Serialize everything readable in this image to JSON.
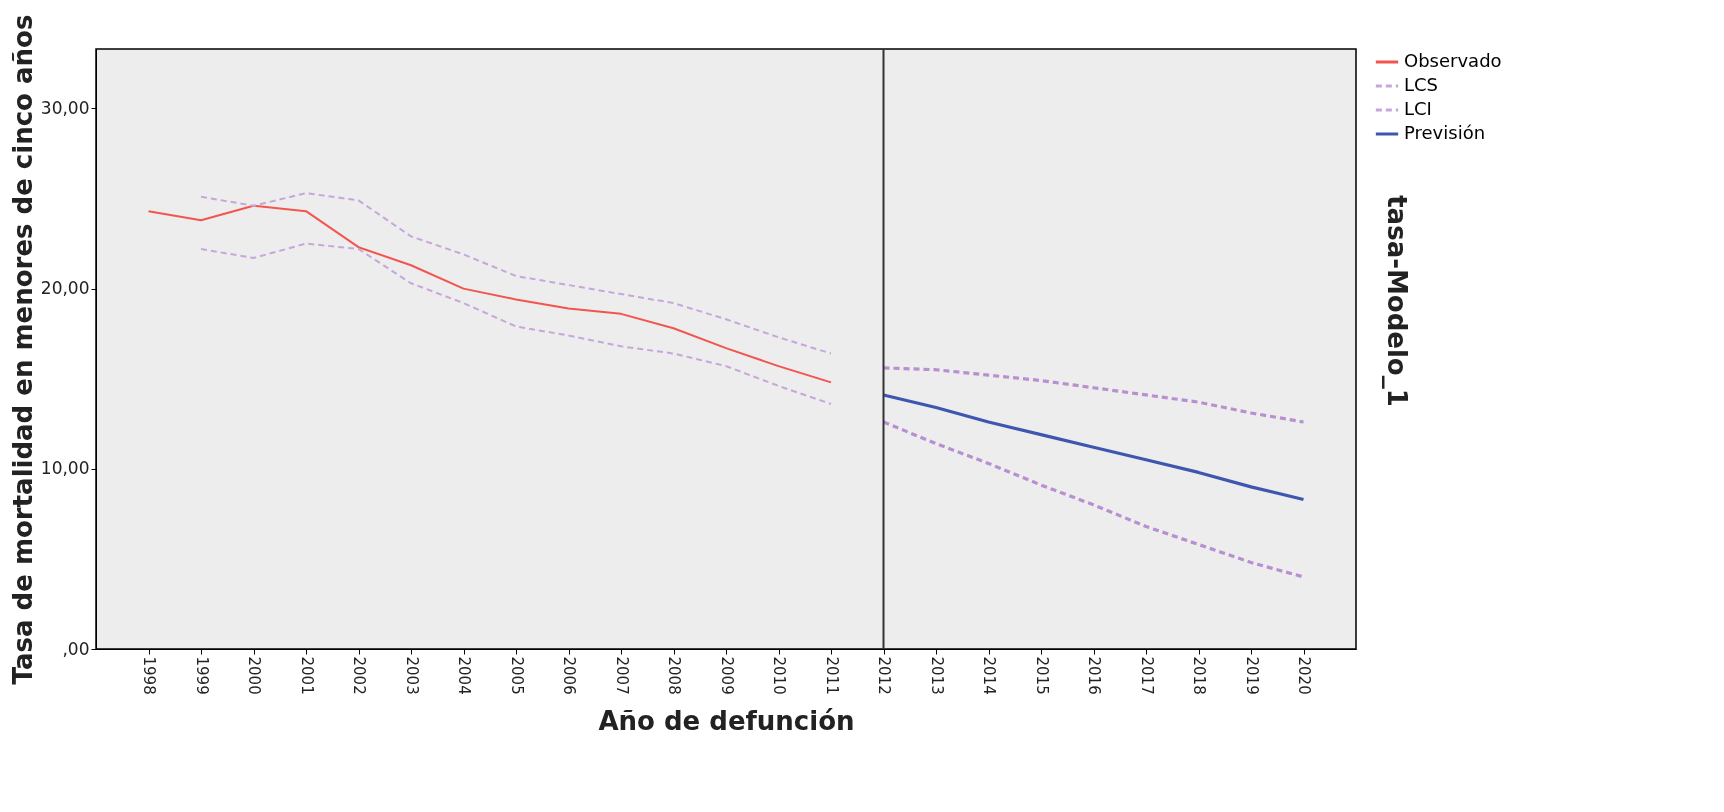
{
  "chart_data": {
    "type": "line",
    "xlabel": "Año de defunción",
    "ylabel": "Tasa de mortalidad en menores de cinco años",
    "categories": [
      "1998",
      "1999",
      "2000",
      "2001",
      "2002",
      "2003",
      "2004",
      "2005",
      "2006",
      "2007",
      "2008",
      "2009",
      "2010",
      "2011",
      "2012",
      "2013",
      "2014",
      "2015",
      "2016",
      "2017",
      "2018",
      "2019",
      "2020"
    ],
    "series": [
      {
        "name": "Observado",
        "color": "#f2554f",
        "line_style": "solid",
        "values": [
          24.3,
          23.8,
          24.6,
          24.3,
          22.3,
          21.3,
          20.0,
          19.4,
          18.9,
          18.6,
          17.8,
          16.7,
          15.7,
          14.8,
          null,
          null,
          null,
          null,
          null,
          null,
          null,
          null,
          null
        ]
      },
      {
        "name": "LCS",
        "color": "#c7a6dc",
        "line_style": "dashed",
        "values": [
          null,
          25.1,
          24.6,
          25.3,
          24.9,
          22.9,
          21.9,
          20.7,
          20.2,
          19.7,
          19.2,
          18.3,
          17.3,
          16.4,
          null,
          null,
          null,
          null,
          null,
          null,
          null,
          null,
          null
        ]
      },
      {
        "name": "LCI",
        "color": "#c7a6dc",
        "line_style": "dashed",
        "values": [
          null,
          22.2,
          21.7,
          22.5,
          22.2,
          20.3,
          19.2,
          17.9,
          17.4,
          16.8,
          16.4,
          15.7,
          14.6,
          13.6,
          null,
          null,
          null,
          null,
          null,
          null,
          null,
          null,
          null
        ]
      },
      {
        "name": "Previsión",
        "color": "#3f56b0",
        "line_style": "solid",
        "values": [
          null,
          null,
          null,
          null,
          null,
          null,
          null,
          null,
          null,
          null,
          null,
          null,
          null,
          null,
          14.1,
          13.4,
          12.6,
          11.9,
          11.2,
          10.5,
          9.8,
          9.0,
          8.3
        ]
      },
      {
        "color": "#b88fd0",
        "line_style": "dashed",
        "values": [
          null,
          null,
          null,
          null,
          null,
          null,
          null,
          null,
          null,
          null,
          null,
          null,
          null,
          null,
          15.6,
          15.5,
          15.2,
          14.9,
          14.5,
          14.1,
          13.7,
          13.1,
          12.6
        ]
      },
      {
        "color": "#b88fd0",
        "line_style": "dashed",
        "values": [
          null,
          null,
          null,
          null,
          null,
          null,
          null,
          null,
          null,
          null,
          null,
          null,
          null,
          null,
          12.6,
          11.4,
          10.3,
          9.1,
          8.0,
          6.8,
          5.8,
          4.8,
          4.0
        ]
      }
    ],
    "ylim": [
      0,
      33.3
    ],
    "yticks": [
      {
        "value": 0,
        "label": ",00"
      },
      {
        "value": 10,
        "label": "10,00"
      },
      {
        "value": 20,
        "label": "20,00"
      },
      {
        "value": 30,
        "label": "30,00"
      }
    ],
    "ref_lines": [
      {
        "axis": "x",
        "value": "2012",
        "color": "#333333"
      }
    ],
    "annotations": [
      "tasa-Modelo_1"
    ],
    "legend": "top right",
    "grid": false,
    "marker": "none"
  }
}
